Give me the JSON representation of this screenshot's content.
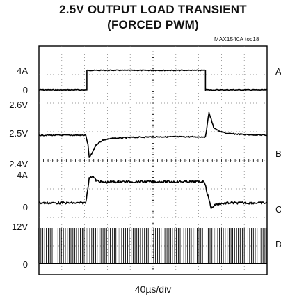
{
  "header": {
    "title_line1": "2.5V OUTPUT LOAD TRANSIENT",
    "title_line2": "(FORCED PWM)",
    "figure_ref": "MAX1540A toc18"
  },
  "footer": {
    "timebase": "40µs/div"
  },
  "chart_data": {
    "type": "line",
    "title": "2.5V OUTPUT LOAD TRANSIENT (FORCED PWM)",
    "xlabel": "40µs/div",
    "grid": true,
    "x_divisions": 10,
    "y_divisions": 8,
    "x_unit": "µs",
    "x_range": [
      0,
      400
    ],
    "traces": [
      {
        "name": "A",
        "labels": [
          "4A",
          "0"
        ],
        "x": [
          0,
          84,
          84,
          292,
          292,
          400
        ],
        "y": [
          0,
          0,
          4,
          4,
          0,
          0
        ],
        "color": "#000000"
      },
      {
        "name": "B",
        "labels": [
          "2.6V",
          "2.5V",
          "2.4V"
        ],
        "x": [
          0,
          82,
          86,
          88,
          92,
          100,
          112,
          130,
          160,
          200,
          292,
          294,
          298,
          302,
          306,
          316,
          330,
          360,
          400
        ],
        "y": [
          2.5,
          2.5,
          2.47,
          2.43,
          2.44,
          2.47,
          2.485,
          2.49,
          2.493,
          2.495,
          2.495,
          2.52,
          2.57,
          2.55,
          2.525,
          2.512,
          2.505,
          2.502,
          2.5
        ],
        "color": "#000000"
      },
      {
        "name": "C",
        "labels": [
          "4A",
          "0"
        ],
        "x": [
          0,
          82,
          88,
          94,
          100,
          112,
          140,
          200,
          290,
          296,
          302,
          310,
          330,
          360,
          400
        ],
        "y": [
          0.4,
          0.4,
          4.2,
          4.6,
          3.9,
          3.6,
          3.7,
          3.7,
          3.7,
          1.6,
          -0.4,
          0.2,
          0.4,
          0.4,
          0.4
        ],
        "color": "#000000"
      },
      {
        "name": "D",
        "labels": [
          "12V",
          "0"
        ],
        "description_type": "switching",
        "period_us": 3.3,
        "high_v": 12,
        "low_v": 0,
        "color": "#000000"
      }
    ]
  }
}
